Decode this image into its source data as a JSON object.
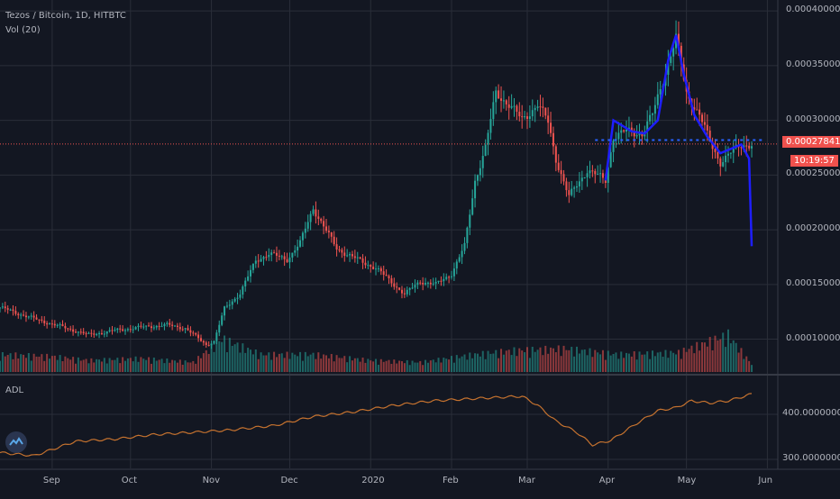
{
  "header": {
    "title": "Tezos / Bitcoin, 1D, HITBTC",
    "volume_label": "Vol (20)",
    "indicator_label": "ADL"
  },
  "price_tags": {
    "last_price": "0.00027841",
    "countdown": "10:19:57"
  },
  "colors": {
    "background": "#131722",
    "grid": "#2a2e39",
    "up": "#26a69a",
    "down": "#ef5350",
    "pattern": "#1e1eff",
    "pattern_dots": "#2962ff",
    "adl_line": "#c5722f",
    "price_line": "#ef5350",
    "divider": "#363a45"
  },
  "chart_data": [
    {
      "type": "candlestick",
      "title": "Tezos / Bitcoin, 1D, HITBTC",
      "x_range": [
        "2019-08-12",
        "2020-06-05"
      ],
      "x_ticks": [
        "Sep",
        "Oct",
        "Nov",
        "Dec",
        "2020",
        "Feb",
        "Mar",
        "Apr",
        "May",
        "Jun"
      ],
      "y_range": [
        7e-05,
        0.00041
      ],
      "y_ticks": [
        "0.00040000",
        "0.00035000",
        "0.00030000",
        "0.00025000",
        "0.00020000",
        "0.00015000",
        "0.00010000"
      ],
      "last_price": 0.00027841,
      "close_points": [
        [
          "2019-08-12",
          0.000129
        ],
        [
          "2019-08-26",
          0.000118
        ],
        [
          "2019-09-05",
          0.000111
        ],
        [
          "2019-09-15",
          0.000104
        ],
        [
          "2019-09-25",
          0.000108
        ],
        [
          "2019-10-05",
          0.000111
        ],
        [
          "2019-10-15",
          0.000113
        ],
        [
          "2019-10-22",
          0.00011
        ],
        [
          "2019-10-30",
          9.5e-05
        ],
        [
          "2019-11-02",
          9.8e-05
        ],
        [
          "2019-11-06",
          0.000128
        ],
        [
          "2019-11-12",
          0.000142
        ],
        [
          "2019-11-18",
          0.000172
        ],
        [
          "2019-11-23",
          0.000178
        ],
        [
          "2019-11-30",
          0.000173
        ],
        [
          "2019-12-05",
          0.000188
        ],
        [
          "2019-12-10",
          0.00022
        ],
        [
          "2019-12-14",
          0.000203
        ],
        [
          "2019-12-19",
          0.000183
        ],
        [
          "2019-12-25",
          0.000175
        ],
        [
          "2020-01-03",
          0.000165
        ],
        [
          "2020-01-10",
          0.00015
        ],
        [
          "2020-01-14",
          0.000141
        ],
        [
          "2020-01-20",
          0.000153
        ],
        [
          "2020-01-26",
          0.00015
        ],
        [
          "2020-02-01",
          0.00016
        ],
        [
          "2020-02-06",
          0.000185
        ],
        [
          "2020-02-10",
          0.000245
        ],
        [
          "2020-02-14",
          0.000275
        ],
        [
          "2020-02-18",
          0.000325
        ],
        [
          "2020-02-23",
          0.000315
        ],
        [
          "2020-02-28",
          0.0003
        ],
        [
          "2020-03-05",
          0.000315
        ],
        [
          "2020-03-09",
          0.000298
        ],
        [
          "2020-03-12",
          0.000265
        ],
        [
          "2020-03-17",
          0.00023
        ],
        [
          "2020-03-24",
          0.000255
        ],
        [
          "2020-03-31",
          0.000245
        ],
        [
          "2020-04-03",
          0.000285
        ],
        [
          "2020-04-08",
          0.00029
        ],
        [
          "2020-04-14",
          0.000288
        ],
        [
          "2020-04-18",
          0.000305
        ],
        [
          "2020-04-23",
          0.000345
        ],
        [
          "2020-04-27",
          0.000375
        ],
        [
          "2020-05-01",
          0.000325
        ],
        [
          "2020-05-06",
          0.000305
        ],
        [
          "2020-05-10",
          0.00028
        ],
        [
          "2020-05-14",
          0.000262
        ],
        [
          "2020-05-18",
          0.00027
        ],
        [
          "2020-05-22",
          0.000278
        ],
        [
          "2020-05-26",
          0.000278
        ]
      ],
      "annotations": {
        "pattern_line": [
          [
            "2020-03-31",
            0.000245
          ],
          [
            "2020-04-03",
            0.0003
          ],
          [
            "2020-04-10",
            0.00029
          ],
          [
            "2020-04-15",
            0.000288
          ],
          [
            "2020-04-20",
            0.0003
          ],
          [
            "2020-04-24",
            0.000355
          ],
          [
            "2020-04-27",
            0.000378
          ],
          [
            "2020-04-30",
            0.000342
          ],
          [
            "2020-05-04",
            0.000305
          ],
          [
            "2020-05-09",
            0.000285
          ],
          [
            "2020-05-14",
            0.00027
          ],
          [
            "2020-05-22",
            0.000278
          ],
          [
            "2020-05-25",
            0.000265
          ],
          [
            "2020-05-26",
            0.000185
          ]
        ],
        "dotted_neckline": {
          "from": "2020-03-27",
          "to": "2020-05-31",
          "y": 0.000282
        }
      }
    },
    {
      "type": "bar",
      "title": "Vol (20)",
      "note": "volume histogram, relative heights 0-1",
      "volume_points": [
        [
          "2019-08-12",
          0.45
        ],
        [
          "2019-09-01",
          0.4
        ],
        [
          "2019-09-15",
          0.3
        ],
        [
          "2019-10-05",
          0.35
        ],
        [
          "2019-10-25",
          0.25
        ],
        [
          "2019-11-05",
          0.85
        ],
        [
          "2019-11-20",
          0.45
        ],
        [
          "2019-12-10",
          0.45
        ],
        [
          "2020-01-01",
          0.3
        ],
        [
          "2020-01-20",
          0.25
        ],
        [
          "2020-02-10",
          0.45
        ],
        [
          "2020-02-25",
          0.55
        ],
        [
          "2020-03-15",
          0.6
        ],
        [
          "2020-04-05",
          0.45
        ],
        [
          "2020-04-28",
          0.5
        ],
        [
          "2020-05-17",
          0.95
        ],
        [
          "2020-05-26",
          0.2
        ]
      ]
    },
    {
      "type": "line",
      "title": "ADL",
      "y_range": [
        280,
        480
      ],
      "y_ticks": [
        "400.00000000",
        "300.00000000"
      ],
      "x": [
        "2019-08-12",
        "2019-08-25",
        "2019-09-10",
        "2019-09-25",
        "2019-10-10",
        "2019-10-25",
        "2019-11-08",
        "2019-11-25",
        "2019-12-10",
        "2019-12-25",
        "2020-01-10",
        "2020-01-25",
        "2020-02-10",
        "2020-02-20",
        "2020-02-28",
        "2020-03-05",
        "2020-03-12",
        "2020-03-20",
        "2020-03-26",
        "2020-04-02",
        "2020-04-12",
        "2020-04-20",
        "2020-04-27",
        "2020-05-03",
        "2020-05-10",
        "2020-05-17",
        "2020-05-26"
      ],
      "values": [
        315,
        308,
        340,
        345,
        355,
        360,
        365,
        375,
        395,
        405,
        420,
        430,
        435,
        438,
        440,
        420,
        385,
        360,
        332,
        342,
        380,
        408,
        415,
        430,
        425,
        430,
        445
      ]
    }
  ]
}
